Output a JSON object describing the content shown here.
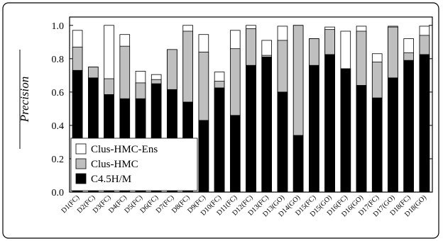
{
  "chart_data": {
    "type": "overlapping-bar",
    "y_label": "Precision",
    "categories": [
      "D1(FC)",
      "D2(FC)",
      "D3(FC)",
      "D4(FC)",
      "D5(FC)",
      "D6(FC)",
      "D7(FC)",
      "D8(FC)",
      "D9(FC)",
      "D10(FC)",
      "D11(FC)",
      "D12(FC)",
      "D13(FC)",
      "D13(GO)",
      "D14(GO)",
      "D15(FC)",
      "D15(GO)",
      "D16(FC)",
      "D16(GO)",
      "D17(FC)",
      "D17(GO)",
      "D18(FC)",
      "D18(GO)"
    ],
    "series": [
      {
        "name": "Clus-HMC-Ens",
        "color": "#ffffff",
        "values": [
          0.97,
          0.75,
          1.0,
          0.945,
          0.725,
          0.705,
          0.855,
          1.0,
          0.945,
          0.72,
          0.97,
          1.0,
          0.91,
          0.995,
          1.0,
          0.92,
          0.99,
          0.965,
          0.995,
          0.83,
          0.995,
          0.92,
          0.995
        ]
      },
      {
        "name": "Clus-HMC",
        "color": "#bfbfbf",
        "values": [
          0.87,
          0.75,
          0.68,
          0.875,
          0.655,
          0.675,
          0.855,
          0.965,
          0.84,
          0.665,
          0.86,
          0.98,
          0.82,
          0.91,
          1.0,
          0.92,
          0.975,
          0.74,
          0.965,
          0.78,
          0.99,
          0.835,
          0.94
        ]
      },
      {
        "name": "C4.5H/M",
        "color": "#000000",
        "values": [
          0.73,
          0.685,
          0.585,
          0.56,
          0.56,
          0.65,
          0.615,
          0.54,
          0.43,
          0.625,
          0.46,
          0.76,
          0.81,
          0.6,
          0.34,
          0.76,
          0.825,
          0.74,
          0.64,
          0.565,
          0.685,
          0.79,
          0.825
        ]
      }
    ],
    "ylim": [
      0,
      1.05
    ],
    "yticks": [
      {
        "value": 0,
        "label": "0.0"
      },
      {
        "value": 0.2,
        "label": "0.2"
      },
      {
        "value": 0.4,
        "label": "0.4"
      },
      {
        "value": 0.6,
        "label": "0.6"
      },
      {
        "value": 0.8,
        "label": "0.8"
      },
      {
        "value": 1,
        "label": "1.0"
      }
    ],
    "legend": "lower-left"
  }
}
